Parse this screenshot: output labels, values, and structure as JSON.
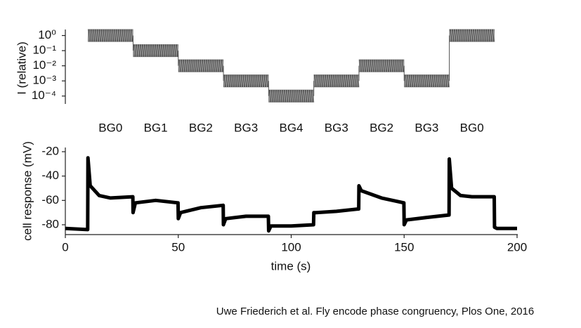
{
  "chart_data": [
    {
      "type": "step",
      "y_label": "I (relative)",
      "log_scale": true,
      "color": "#555555",
      "categories": [
        "BG0",
        "BG1",
        "BG2",
        "BG3",
        "BG4",
        "BG3",
        "BG2",
        "BG3",
        "BG0"
      ],
      "values": [
        1,
        0.1,
        0.01,
        0.001,
        0.0001,
        0.001,
        0.01,
        0.001,
        1
      ],
      "ylim": [
        3e-05,
        2.5
      ],
      "yticks": [
        {
          "value": 1,
          "label": "10⁰"
        },
        {
          "value": 0.1,
          "label": "10⁻¹"
        },
        {
          "value": 0.01,
          "label": "10⁻²"
        },
        {
          "value": 0.001,
          "label": "10⁻³"
        },
        {
          "value": 0.0001,
          "label": "10⁻⁴"
        }
      ]
    },
    {
      "type": "line",
      "x_label": "time (s)",
      "y_label": "cell response (mV)",
      "color": "#000000",
      "x": [
        0,
        9.9,
        10,
        11,
        15,
        20,
        29.9,
        30,
        31,
        40,
        49.9,
        50,
        51,
        60,
        69.9,
        70,
        71,
        80,
        89.9,
        90,
        91,
        100,
        109.9,
        110,
        111,
        120,
        129.9,
        130,
        131,
        140,
        149.9,
        150,
        151,
        160,
        169.9,
        170,
        171,
        175,
        180,
        189.9,
        190,
        191,
        200
      ],
      "values": [
        -83,
        -84,
        -25,
        -48,
        -56,
        -58,
        -57,
        -70,
        -62,
        -60,
        -62,
        -75,
        -70,
        -66,
        -64,
        -80,
        -75,
        -73,
        -73,
        -85,
        -81,
        -81,
        -80,
        -70,
        -70,
        -69,
        -67,
        -48,
        -52,
        -58,
        -62,
        -80,
        -76,
        -74,
        -72,
        -26,
        -50,
        -56,
        -57,
        -57,
        -82,
        -83,
        -83
      ],
      "xlim": [
        0,
        200
      ],
      "xticks": [
        0,
        50,
        100,
        150,
        200
      ],
      "ylim": [
        -88,
        -20
      ],
      "yticks": [
        -80,
        -60,
        -40,
        -20
      ]
    }
  ],
  "caption": "Uwe Friederich et al. Fly encode phase congruency, Plos One, 2016"
}
